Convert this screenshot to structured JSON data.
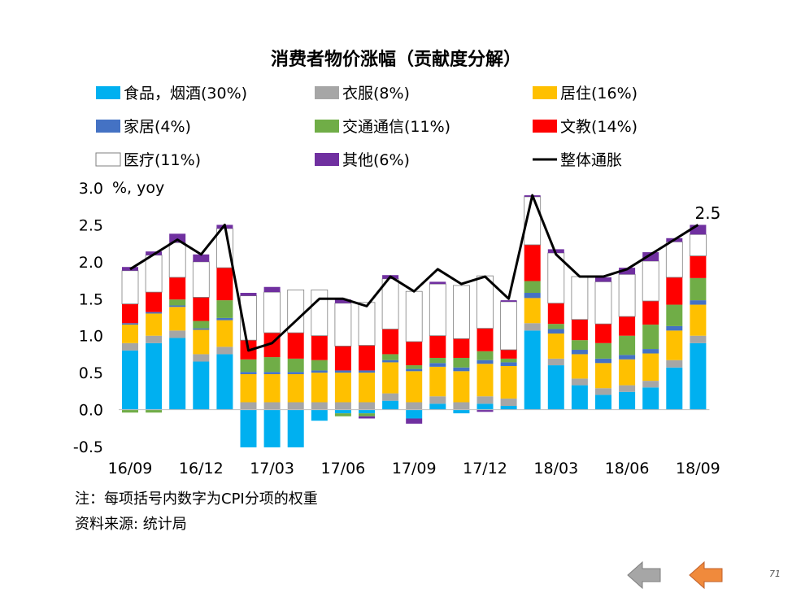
{
  "chart_data": {
    "type": "bar",
    "stacked": true,
    "title": "消费者物价涨幅（贡献度分解）",
    "ylabel": "%, yoy",
    "ylim": [
      -0.5,
      3.0
    ],
    "yticks": [
      3.0,
      2.5,
      2.0,
      1.5,
      1.0,
      0.5,
      0.0,
      -0.5
    ],
    "ytick_labels": [
      "3.0",
      "2.5",
      "2.0",
      "1.5",
      "1.0",
      "0.5",
      "0.0",
      "-0.5"
    ],
    "xtick_labels": [
      "16/09",
      "16/12",
      "17/03",
      "17/06",
      "17/09",
      "17/12",
      "18/03",
      "18/06",
      "18/09"
    ],
    "legend_position": "top",
    "categories": [
      "16/09",
      "16/10",
      "16/11",
      "16/12",
      "17/01",
      "17/02",
      "17/03",
      "17/04",
      "17/05",
      "17/06",
      "17/07",
      "17/08",
      "17/09",
      "17/10",
      "17/11",
      "17/12",
      "18/01",
      "18/02",
      "18/03",
      "18/04",
      "18/05",
      "18/06",
      "18/07",
      "18/08",
      "18/09"
    ],
    "series": [
      {
        "name": "食品，烟酒(30%)",
        "color": "#00b0f0",
        "values": [
          0.8,
          0.9,
          0.97,
          0.65,
          0.75,
          -0.51,
          -0.51,
          -0.51,
          -0.15,
          -0.05,
          -0.05,
          0.12,
          -0.12,
          0.08,
          -0.05,
          0.08,
          0.05,
          1.07,
          0.6,
          0.33,
          0.2,
          0.24,
          0.3,
          0.57,
          0.9
        ]
      },
      {
        "name": "衣服(8%)",
        "color": "#a6a6a6",
        "values": [
          0.1,
          0.1,
          0.1,
          0.1,
          0.1,
          0.1,
          0.1,
          0.1,
          0.1,
          0.1,
          0.1,
          0.1,
          0.1,
          0.1,
          0.1,
          0.1,
          0.1,
          0.1,
          0.09,
          0.09,
          0.09,
          0.09,
          0.09,
          0.1,
          0.1
        ]
      },
      {
        "name": "居住(16%)",
        "color": "#ffc000",
        "values": [
          0.25,
          0.3,
          0.32,
          0.33,
          0.36,
          0.38,
          0.38,
          0.38,
          0.4,
          0.4,
          0.4,
          0.42,
          0.42,
          0.4,
          0.42,
          0.44,
          0.44,
          0.34,
          0.34,
          0.33,
          0.34,
          0.35,
          0.37,
          0.4,
          0.42
        ]
      },
      {
        "name": "家居(4%)",
        "color": "#4472c4",
        "values": [
          0.02,
          0.02,
          0.02,
          0.02,
          0.03,
          0.03,
          0.03,
          0.03,
          0.03,
          0.03,
          0.03,
          0.03,
          0.03,
          0.05,
          0.05,
          0.05,
          0.05,
          0.07,
          0.06,
          0.06,
          0.06,
          0.06,
          0.06,
          0.06,
          0.06
        ]
      },
      {
        "name": "交通通信(11%)",
        "color": "#70ad47",
        "values": [
          -0.04,
          -0.04,
          0.08,
          0.1,
          0.24,
          0.17,
          0.2,
          0.18,
          0.14,
          -0.04,
          -0.04,
          0.08,
          0.05,
          0.07,
          0.13,
          0.12,
          0.05,
          0.16,
          0.07,
          0.13,
          0.21,
          0.26,
          0.33,
          0.29,
          0.3
        ]
      },
      {
        "name": "文教(14%)",
        "color": "#ff0000",
        "values": [
          0.26,
          0.27,
          0.3,
          0.32,
          0.44,
          0.26,
          0.33,
          0.35,
          0.33,
          0.33,
          0.34,
          0.34,
          0.32,
          0.3,
          0.26,
          0.31,
          0.12,
          0.49,
          0.28,
          0.28,
          0.26,
          0.26,
          0.32,
          0.37,
          0.3
        ]
      },
      {
        "name": "医疗(11%)",
        "color": "#ffffff",
        "stroke": "#7f7f7f",
        "values": [
          0.45,
          0.5,
          0.47,
          0.48,
          0.53,
          0.6,
          0.55,
          0.58,
          0.62,
          0.58,
          0.58,
          0.68,
          0.68,
          0.7,
          0.72,
          0.71,
          0.65,
          0.65,
          0.68,
          0.58,
          0.57,
          0.57,
          0.54,
          0.48,
          0.29
        ]
      },
      {
        "name": "其他(6%)",
        "color": "#7030a0",
        "values": [
          0.05,
          0.05,
          0.12,
          0.1,
          0.05,
          0.04,
          0.07,
          0.0,
          0.0,
          0.05,
          -0.03,
          0.05,
          -0.07,
          0.03,
          0.0,
          -0.03,
          0.02,
          0.02,
          0.05,
          0.0,
          0.06,
          0.09,
          0.12,
          0.05,
          0.13
        ]
      }
    ],
    "line": {
      "name": "整体通胀",
      "color": "#000000",
      "values": [
        1.9,
        2.1,
        2.3,
        2.1,
        2.5,
        0.8,
        0.9,
        1.2,
        1.5,
        1.5,
        1.4,
        1.8,
        1.6,
        1.9,
        1.7,
        1.8,
        1.5,
        2.9,
        2.1,
        1.8,
        1.8,
        1.9,
        2.1,
        2.3,
        2.5
      ]
    },
    "annotation": {
      "label": "2.5",
      "category": "18/09"
    }
  },
  "notes": {
    "note1": "注：每项括号内数字为CPI分项的权重",
    "note2": "资料来源: 统计局"
  },
  "page_number": "71",
  "nav": {
    "prev_icon": "arrow-left-icon",
    "next_icon": "arrow-left-icon",
    "prev_color": "#a6a6a6",
    "next_color": "#f08a3c"
  }
}
